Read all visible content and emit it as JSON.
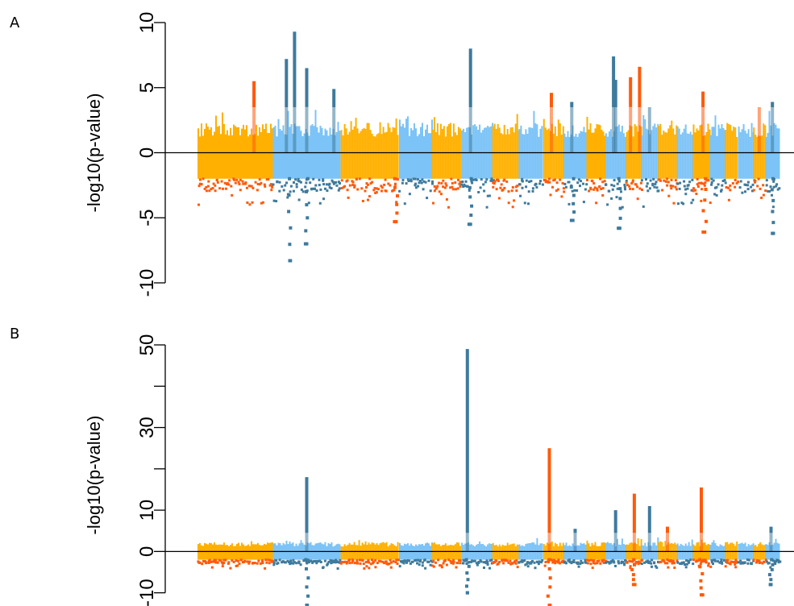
{
  "colors": {
    "gold": "#FFB000",
    "orange": "#FF5A0A",
    "light_blue": "#7CC3F7",
    "steel_blue": "#3E7A9C",
    "axis": "#000000"
  },
  "chart_data": [
    {
      "id": "A",
      "type": "miami-manhattan",
      "panel_label": "A",
      "ylabel": "-log10(p-value)",
      "ylim": [
        -10,
        10
      ],
      "yticks": [
        -10,
        -5,
        0,
        5,
        10
      ],
      "grid": false,
      "chromosome_widths": [
        80,
        72,
        62,
        35,
        31,
        33,
        28,
        26,
        22,
        24,
        20,
        22,
        16,
        18,
        20,
        17,
        18,
        16,
        14,
        16,
        13,
        15
      ],
      "top_highlight_threshold": 3.5,
      "bottom_baseline": -2,
      "peaks": [
        {
          "chrom": 1,
          "pos": 0.75,
          "y": 5.5
        },
        {
          "chrom": 2,
          "pos": 0.2,
          "y": 7.2
        },
        {
          "chrom": 2,
          "pos": 0.32,
          "y": 9.3
        },
        {
          "chrom": 2,
          "pos": 0.5,
          "y": 6.5
        },
        {
          "chrom": 2,
          "pos": 0.9,
          "y": 4.9
        },
        {
          "chrom": 2,
          "pos": 0.25,
          "y": -8.3
        },
        {
          "chrom": 2,
          "pos": 0.5,
          "y": -7.0
        },
        {
          "chrom": 3,
          "pos": 0.95,
          "y": -5.3
        },
        {
          "chrom": 6,
          "pos": 0.3,
          "y": 8.0
        },
        {
          "chrom": 6,
          "pos": 0.3,
          "y": -5.5
        },
        {
          "chrom": 9,
          "pos": 0.4,
          "y": 4.6
        },
        {
          "chrom": 10,
          "pos": 0.35,
          "y": 3.9
        },
        {
          "chrom": 10,
          "pos": 0.4,
          "y": -5.2
        },
        {
          "chrom": 12,
          "pos": 0.4,
          "y": 7.4
        },
        {
          "chrom": 12,
          "pos": 0.5,
          "y": 5.6
        },
        {
          "chrom": 12,
          "pos": 0.7,
          "y": -5.8
        },
        {
          "chrom": 13,
          "pos": 0.3,
          "y": 5.8
        },
        {
          "chrom": 13,
          "pos": 0.9,
          "y": 6.6
        },
        {
          "chrom": 14,
          "pos": 0.5,
          "y": 3.2
        },
        {
          "chrom": 17,
          "pos": 0.6,
          "y": 4.7
        },
        {
          "chrom": 17,
          "pos": 0.7,
          "y": -6.1
        },
        {
          "chrom": 21,
          "pos": 0.5,
          "y": 3.5
        },
        {
          "chrom": 22,
          "pos": 0.5,
          "y": 3.9
        },
        {
          "chrom": 22,
          "pos": 0.5,
          "y": -6.2
        }
      ]
    },
    {
      "id": "B",
      "type": "miami-manhattan",
      "panel_label": "B",
      "ylabel": "-log10(p-value)",
      "ylim": [
        -13,
        50
      ],
      "yticks": [
        -10,
        0,
        10,
        30,
        50
      ],
      "yticks_minor": [
        20,
        40
      ],
      "grid": false,
      "chromosome_widths": [
        80,
        72,
        62,
        35,
        31,
        33,
        28,
        26,
        22,
        24,
        20,
        22,
        16,
        18,
        20,
        17,
        18,
        16,
        14,
        16,
        13,
        15
      ],
      "top_highlight_threshold": 4.5,
      "bottom_baseline": -2,
      "peaks": [
        {
          "chrom": 2,
          "pos": 0.5,
          "y": 18
        },
        {
          "chrom": 2,
          "pos": 0.5,
          "y": -13
        },
        {
          "chrom": 6,
          "pos": 0.2,
          "y": 49
        },
        {
          "chrom": 6,
          "pos": 0.2,
          "y": -10
        },
        {
          "chrom": 9,
          "pos": 0.3,
          "y": 25
        },
        {
          "chrom": 9,
          "pos": 0.3,
          "y": -13
        },
        {
          "chrom": 10,
          "pos": 0.5,
          "y": 5.5
        },
        {
          "chrom": 12,
          "pos": 0.5,
          "y": 10
        },
        {
          "chrom": 13,
          "pos": 0.55,
          "y": 14
        },
        {
          "chrom": 13,
          "pos": 0.5,
          "y": -8
        },
        {
          "chrom": 14,
          "pos": 0.5,
          "y": 11
        },
        {
          "chrom": 15,
          "pos": 0.5,
          "y": 6
        },
        {
          "chrom": 17,
          "pos": 0.5,
          "y": 15.5
        },
        {
          "chrom": 17,
          "pos": 0.5,
          "y": -10.5
        },
        {
          "chrom": 22,
          "pos": 0.4,
          "y": 6
        },
        {
          "chrom": 22,
          "pos": 0.4,
          "y": -8
        }
      ]
    }
  ]
}
